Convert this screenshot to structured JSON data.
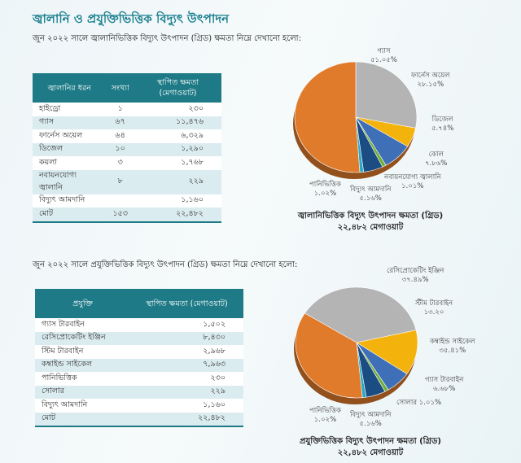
{
  "title": "জ্বালানি ও প্রযুক্তিভিত্তিক বিদ্যুৎ উৎপাদন",
  "section1": {
    "intro": "জুন ২০২২ সালে জ্বালানিভিত্তিক বিদ্যুৎ উৎপাদন (গ্রিড) ক্ষমতা নিম্নে দেখানো হলো:",
    "headers": [
      "জ্বালানির ধরন",
      "সংখ্যা",
      "স্থাপিত ক্ষমতা (মেগাওয়াট)"
    ],
    "rows": [
      [
        "হাইড্রো",
        "১",
        "২৩০"
      ],
      [
        "গ্যাস",
        "৬৭",
        "১১,৪৭৬"
      ],
      [
        "ফার্নেস অয়েল",
        "৬৪",
        "৬,৩২৯"
      ],
      [
        "ডিজেল",
        "১০",
        "১,২৯০"
      ],
      [
        "কয়লা",
        "৩",
        "১,৭৬৮"
      ],
      [
        "নবায়নযোগ্য জ্বালানি",
        "৮",
        "২২৯"
      ],
      [
        "বিদ্যুৎ আমদানি",
        "",
        "১,১৬০"
      ],
      [
        "মোট",
        "১৫৩",
        "২২,৪৮২"
      ]
    ]
  },
  "section2": {
    "intro": "জুন ২০২২ সালে প্রযুক্তিভিত্তিক বিদ্যুৎ উৎপাদন (গ্রিড) ক্ষমতা নিম্নে দেখানো হলো:",
    "headers": [
      "প্রযুক্তি",
      "স্থাপিত ক্ষমতা (মেগাওয়াট)"
    ],
    "rows": [
      [
        "গ্যাস টারবাইন",
        "১,৫০২"
      ],
      [
        "রেসিপ্রোকেটিং ইঞ্জিন",
        "৮,৪৩০"
      ],
      [
        "স্টিম টারবাইন",
        "২,৯৬৮"
      ],
      [
        "কম্বাইন্ড সাইকেল",
        "৭,৯৬৩"
      ],
      [
        "পানিভিত্তিক",
        "২৩০"
      ],
      [
        "সোলার",
        "২২৯"
      ],
      [
        "বিদ্যুৎ আমদানি",
        "১,১৬০"
      ],
      [
        "মোট",
        "২২,৪৮২"
      ]
    ]
  },
  "chart_data": [
    {
      "type": "pie",
      "title": "জ্বালানিভিত্তিক বিদ্যুৎ উৎপাদন ক্ষমতা (গ্রিড)",
      "subtitle": "২২,৪৮২ মেগাওয়াট",
      "slices": [
        {
          "label": "ফার্নেস অয়েল",
          "pct_label": "২৮.১৫%",
          "value": 28.15,
          "color": "#b4b4b4"
        },
        {
          "label": "ডিজেল",
          "pct_label": "৫.৭৪%",
          "value": 5.74,
          "color": "#f4b20c"
        },
        {
          "label": "কোল",
          "pct_label": "৭.৮৬%",
          "value": 7.86,
          "color": "#3f6fb6"
        },
        {
          "label": "নবায়নযোগ্য জ্বালানি",
          "pct_label": "১.০১%",
          "value": 1.01,
          "color": "#6fae3a"
        },
        {
          "label": "বিদ্যুৎ আমদানি",
          "pct_label": "৫.১৬%",
          "value": 5.16,
          "color": "#1b4c82"
        },
        {
          "label": "পানিভিত্তিক",
          "pct_label": "১.০২%",
          "value": 1.02,
          "color": "#29a9c5"
        },
        {
          "label": "গ্যাস",
          "pct_label": "৫১.০৫%",
          "value": 51.05,
          "color": "#e07b2c"
        }
      ]
    },
    {
      "type": "pie",
      "title": "প্রযুক্তিভিত্তিক বিদ্যুৎ উৎপাদন ক্ষমতা (গ্রিড)",
      "subtitle": "২২,৪৮২ মেগাওয়াট",
      "slices": [
        {
          "label": "রেসিপ্রোকেটিং ইঞ্জিন",
          "pct_label": "৩৭.৪৯%",
          "value": 37.49,
          "color": "#b4b4b4"
        },
        {
          "label": "স্টীম টারবাইন",
          "pct_label": "১৩.২০",
          "value": 13.2,
          "color": "#f4b20c"
        },
        {
          "label": "গ্যাস টারবাইন",
          "pct_label": "৬.৬৮%",
          "value": 6.68,
          "color": "#3f6fb6"
        },
        {
          "label": "সোলার",
          "pct_label": "১.০১%",
          "value": 1.01,
          "color": "#6fae3a"
        },
        {
          "label": "বিদ্যুৎ আমদানি",
          "pct_label": "৫.১৬%",
          "value": 5.16,
          "color": "#1b4c82"
        },
        {
          "label": "পানিভিত্তিক",
          "pct_label": "১.০২%",
          "value": 1.02,
          "color": "#29a9c5"
        },
        {
          "label": "কম্বাইন্ড সাইকেল",
          "pct_label": "৩৫.৪১%",
          "value": 35.41,
          "color": "#e07b2c"
        }
      ]
    }
  ]
}
